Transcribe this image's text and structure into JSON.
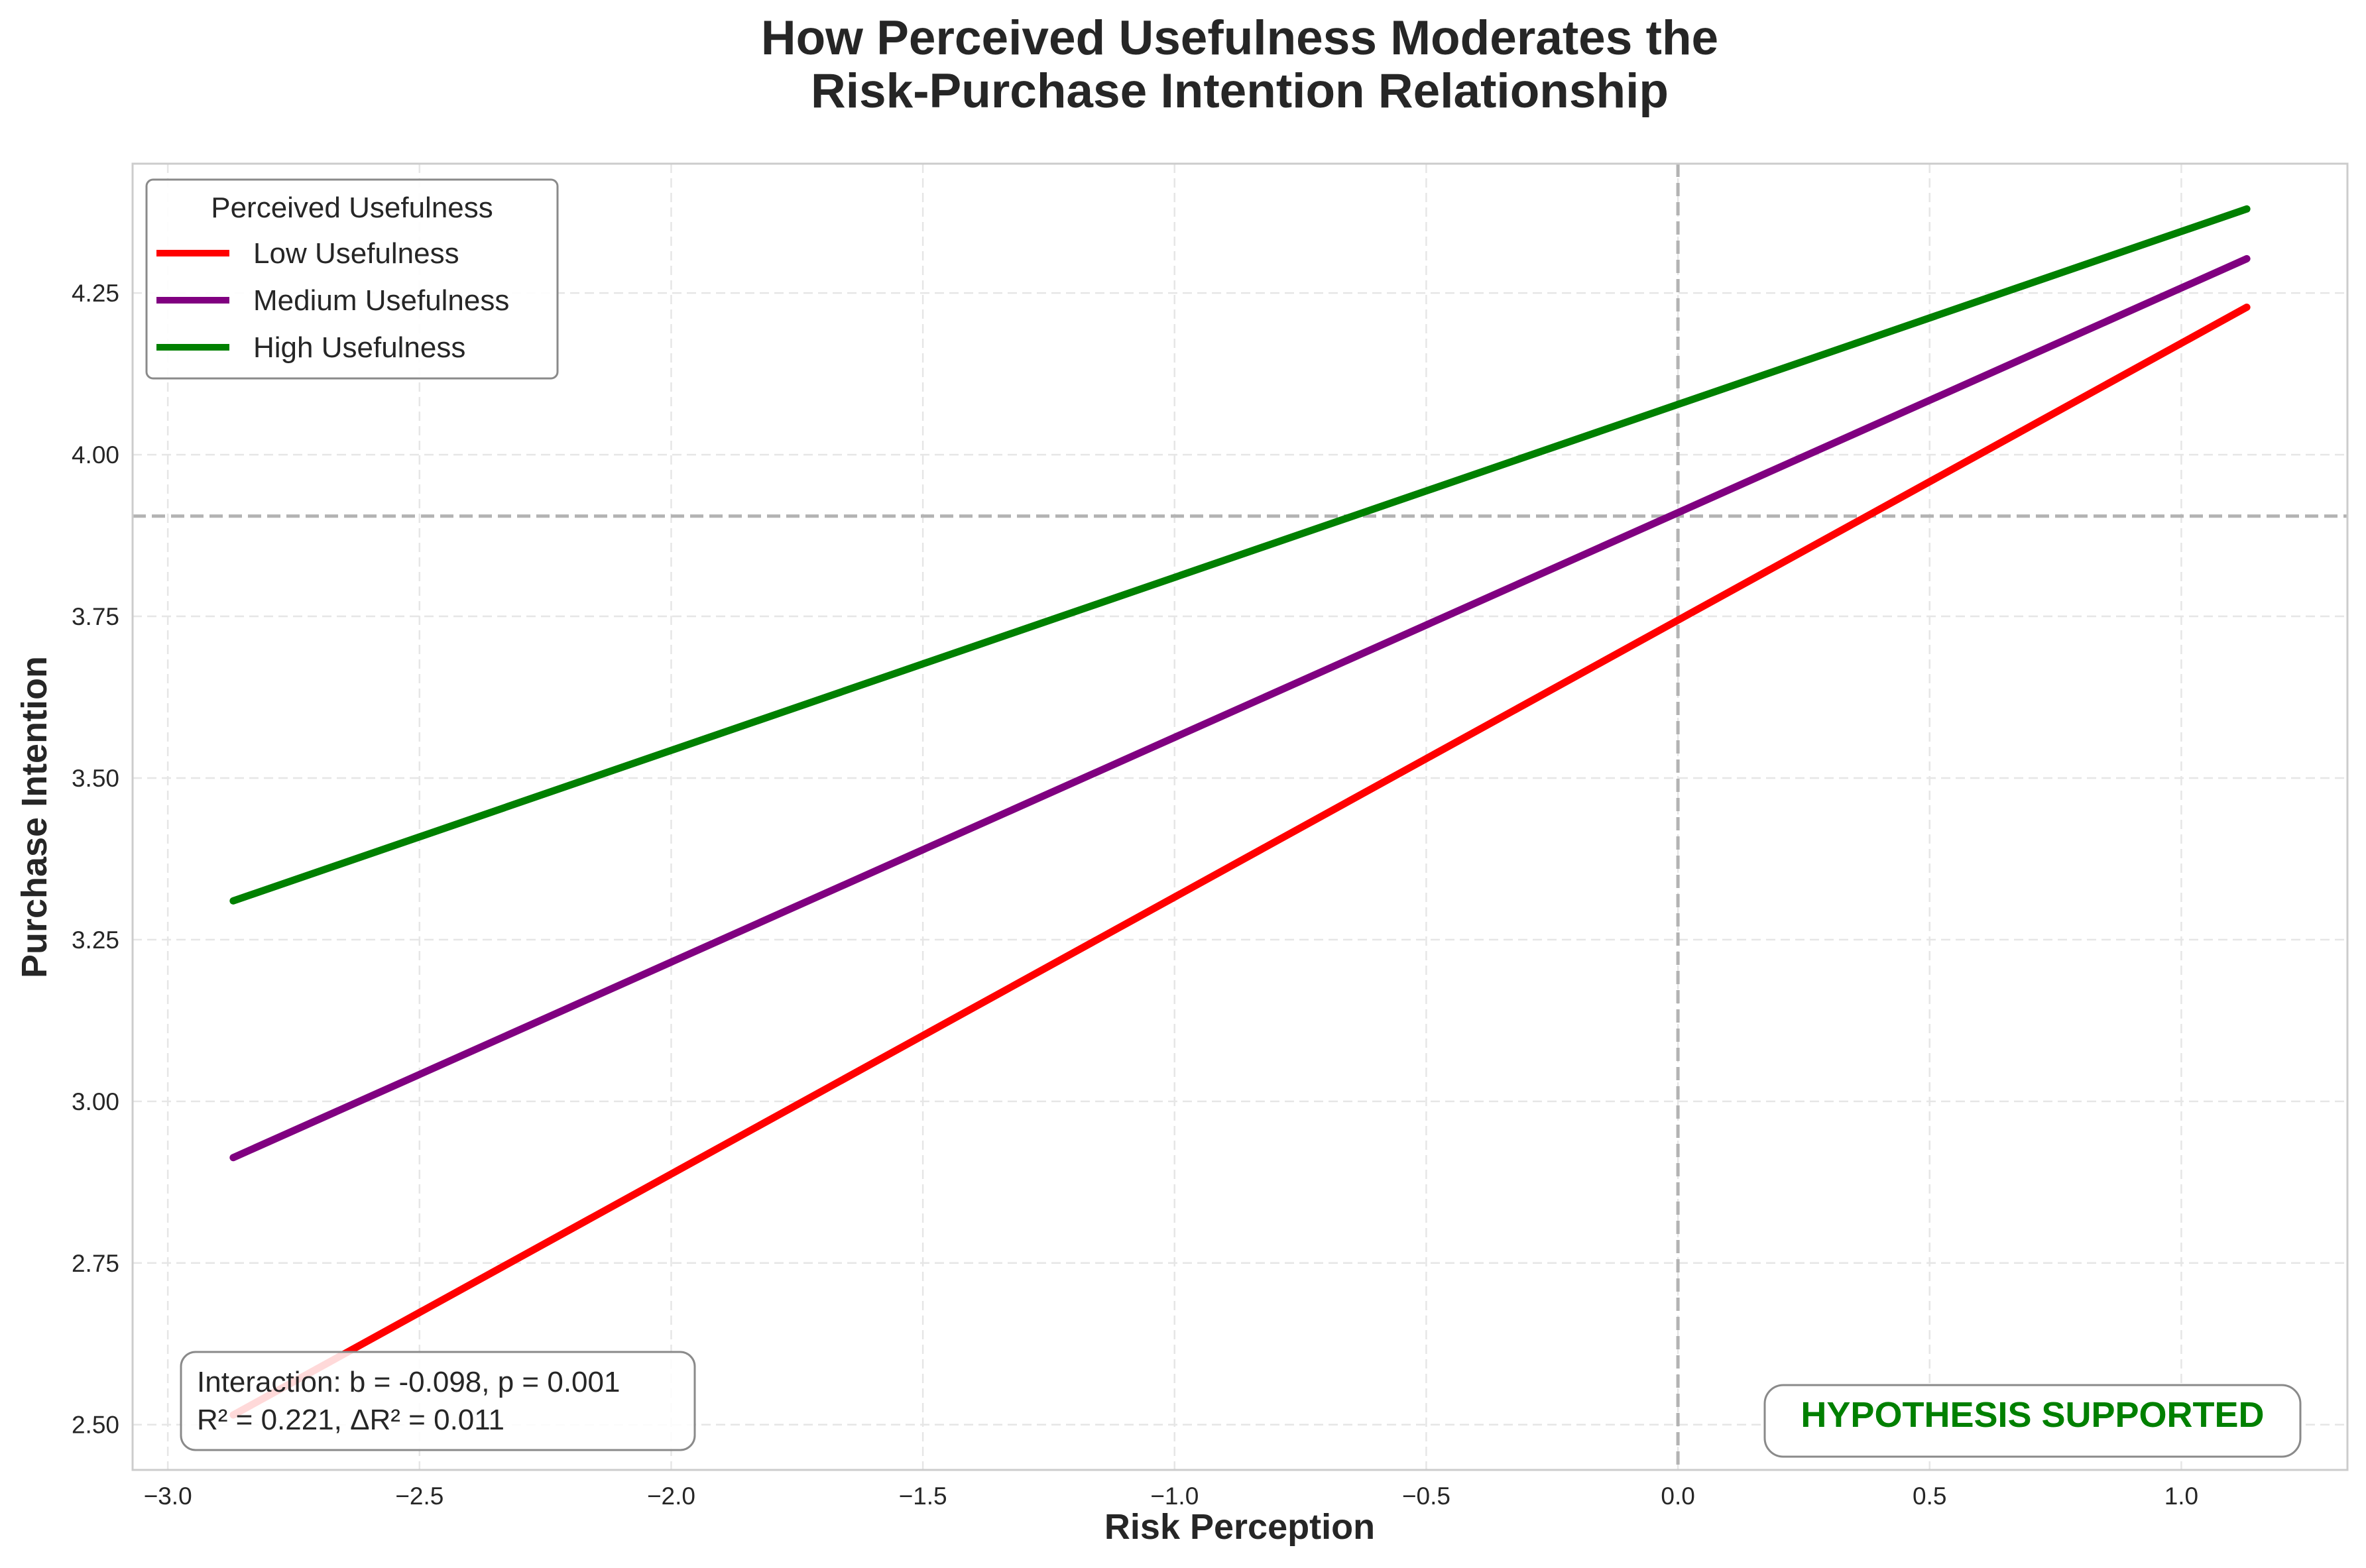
{
  "chart_data": {
    "type": "line",
    "title": [
      "How Perceived Usefulness Moderates the",
      "Risk-Purchase Intention Relationship"
    ],
    "xlabel": "Risk Perception",
    "ylabel": "Purchase Intention",
    "xlim": [
      -3.07,
      1.33
    ],
    "ylim": [
      2.43,
      4.45
    ],
    "xticks": [
      -3.0,
      -2.5,
      -2.0,
      -1.5,
      -1.0,
      -0.5,
      0.0,
      0.5,
      1.0
    ],
    "xtick_labels": [
      "−3.0",
      "−2.5",
      "−2.0",
      "−1.5",
      "−1.0",
      "−0.5",
      "0.0",
      "0.5",
      "1.0"
    ],
    "yticks": [
      2.5,
      2.75,
      3.0,
      3.25,
      3.5,
      3.75,
      4.0,
      4.25
    ],
    "ytick_labels": [
      "2.50",
      "2.75",
      "3.00",
      "3.25",
      "3.50",
      "3.75",
      "4.00",
      "4.25"
    ],
    "grid": true,
    "reference_lines": {
      "vertical_x": 0.0,
      "horizontal_y": 3.905
    },
    "legend": {
      "title": "Perceived Usefulness",
      "placement": "top-left",
      "entries": [
        "Low Usefulness",
        "Medium Usefulness",
        "High Usefulness"
      ]
    },
    "series": [
      {
        "name": "Low Usefulness",
        "color": "#ff0000",
        "x": [
          -2.87,
          1.13
        ],
        "y": [
          2.515,
          4.228
        ]
      },
      {
        "name": "Medium Usefulness",
        "color": "#800080",
        "x": [
          -2.87,
          1.13
        ],
        "y": [
          2.913,
          4.303
        ]
      },
      {
        "name": "High Usefulness",
        "color": "#008000",
        "x": [
          -2.87,
          1.13
        ],
        "y": [
          3.31,
          4.38
        ]
      }
    ],
    "annotations": {
      "stats_line1": "Interaction: b = -0.098, p = 0.001",
      "stats_line2": "R² = 0.221, ΔR² = 0.011",
      "verdict": "HYPOTHESIS SUPPORTED",
      "verdict_color": "#008000"
    }
  }
}
